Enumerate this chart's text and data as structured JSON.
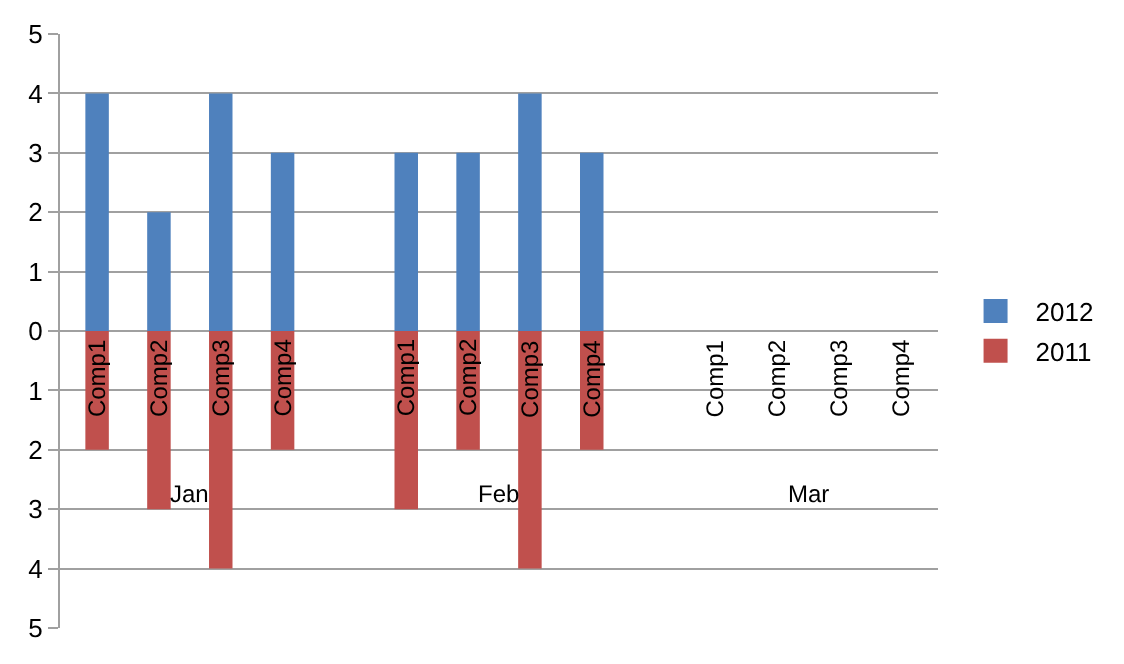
{
  "chart_data": {
    "type": "bar",
    "stacked": true,
    "categories": [
      "Comp1",
      "Comp2",
      "Comp3",
      "Comp4",
      null,
      "Comp1",
      "Comp2",
      "Comp3",
      "Comp4",
      null,
      "Comp1",
      "Comp2",
      "Comp3",
      "Comp4"
    ],
    "annotations": [
      "Jan",
      "Feb",
      "Mar"
    ],
    "series": [
      {
        "name": "2012",
        "color": "#4f81bd",
        "values": [
          4,
          2,
          4,
          3,
          null,
          3,
          3,
          4,
          3,
          null,
          null,
          null,
          null,
          null
        ]
      },
      {
        "name": "2011",
        "color": "#c0504d",
        "values": [
          -2,
          -3,
          -4,
          -2,
          null,
          -3,
          -2,
          -4,
          -2,
          null,
          null,
          null,
          null,
          null
        ]
      }
    ],
    "ylim": [
      -5,
      5
    ],
    "yticks": [
      {
        "value": -5,
        "label": "5"
      },
      {
        "value": -4,
        "label": "4"
      },
      {
        "value": -3,
        "label": "3"
      },
      {
        "value": -2,
        "label": "2"
      },
      {
        "value": -1,
        "label": "1"
      },
      0,
      1,
      2,
      3,
      4,
      5
    ],
    "grid": "y",
    "legend": "right"
  }
}
